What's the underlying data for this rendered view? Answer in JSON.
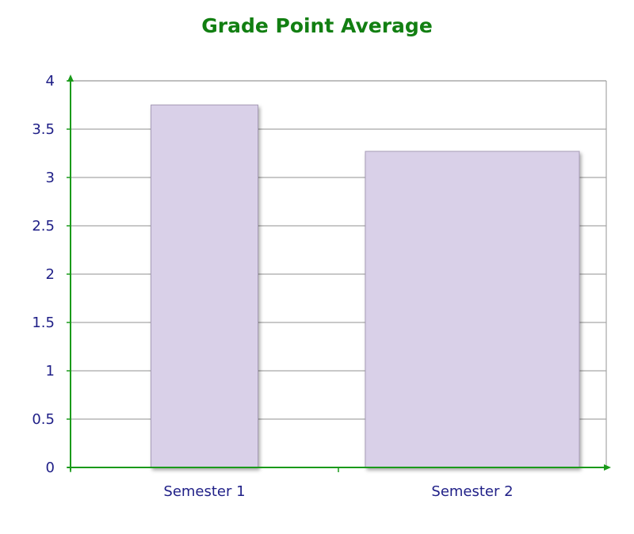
{
  "chart_data": {
    "type": "bar",
    "title": "Grade Point Average",
    "categories": [
      "Semester 1",
      "Semester 2"
    ],
    "values": [
      3.75,
      3.27
    ],
    "ylim": [
      0,
      4
    ],
    "yticks": [
      "0",
      "0.5",
      "1",
      "1.5",
      "2",
      "2.5",
      "3",
      "3.5",
      "4"
    ],
    "xlabel": "",
    "ylabel": "",
    "grid": true,
    "legend": "none",
    "colors": {
      "title": "#127f12",
      "axis": "#1a9a1a",
      "grid": "#a6a6a6",
      "tick_text": "#1f1f87",
      "bar_fill": "#d9d0e8",
      "bar_stroke": "#a89db8"
    }
  }
}
